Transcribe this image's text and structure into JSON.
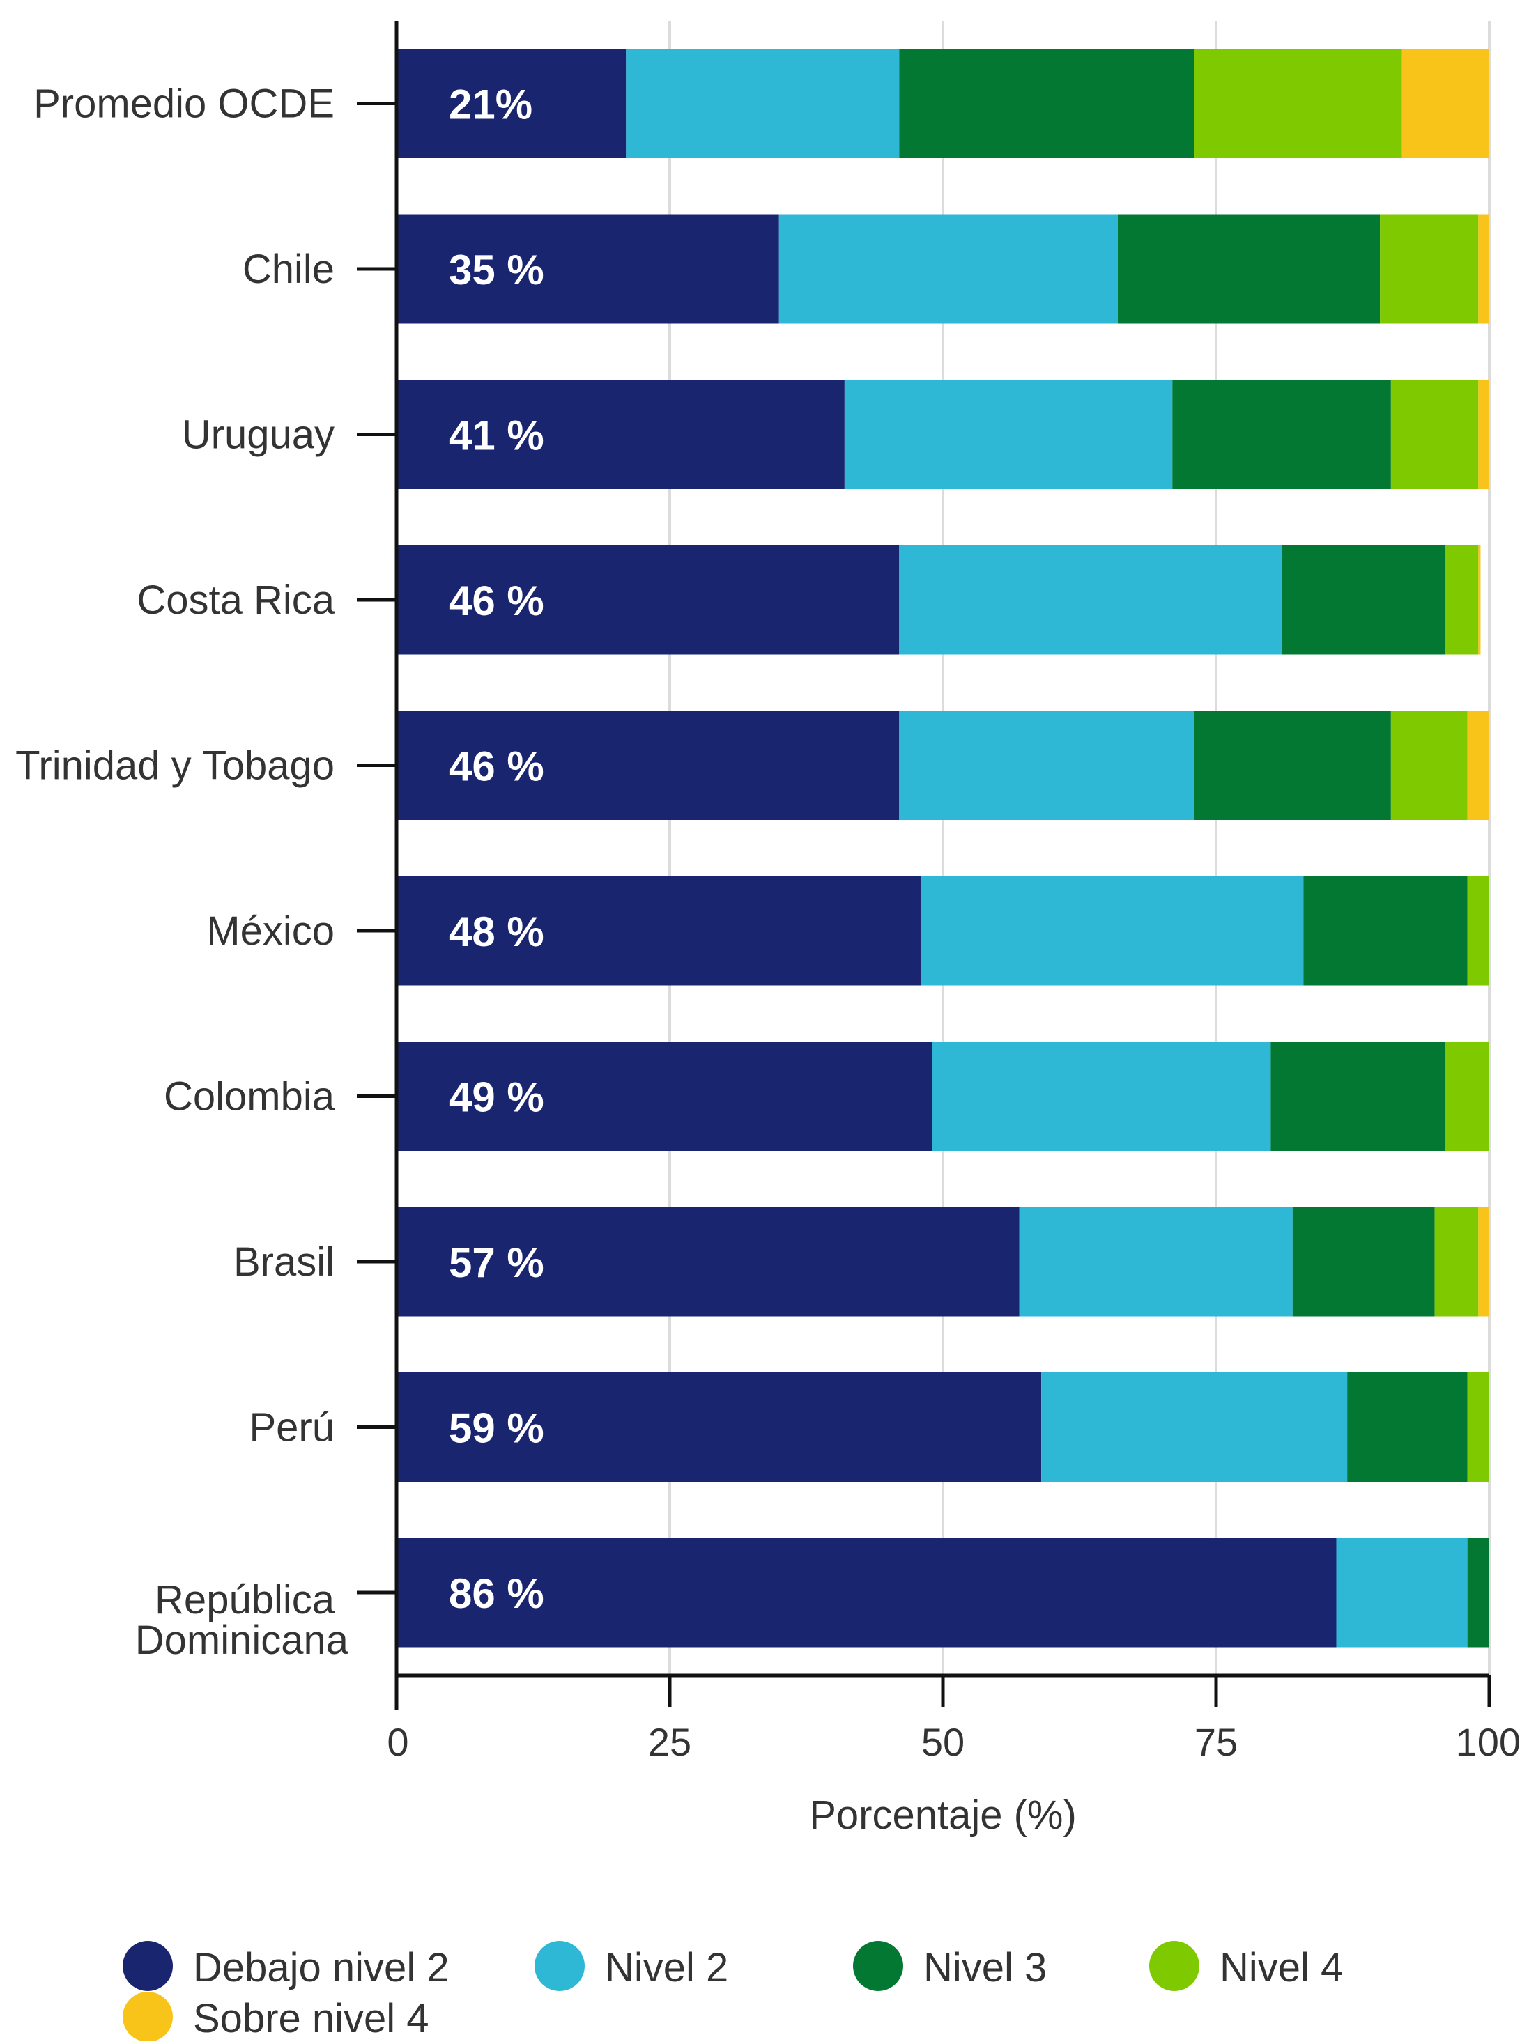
{
  "chart_data": {
    "type": "bar",
    "orientation": "horizontal",
    "stacked": true,
    "categories": [
      "Promedio OCDE",
      "Chile",
      "Uruguay",
      "Costa Rica",
      "Trinidad y Tobago",
      "México",
      "Colombia",
      "Brasil",
      "Perú",
      "República Dominicana"
    ],
    "series": [
      {
        "name": "Debajo nivel 2",
        "color": "#1a2570",
        "values": [
          21,
          35,
          41,
          46,
          46,
          48,
          49,
          57,
          59,
          86
        ]
      },
      {
        "name": "Nivel 2",
        "color": "#2eb8d6",
        "values": [
          25,
          31,
          30,
          35,
          27,
          35,
          31,
          25,
          28,
          12
        ]
      },
      {
        "name": "Nivel 3",
        "color": "#037832",
        "values": [
          27,
          24,
          20,
          15,
          18,
          15,
          16,
          13,
          11,
          2
        ]
      },
      {
        "name": "Nivel 4",
        "color": "#7ec900",
        "values": [
          19,
          9,
          8,
          3,
          7,
          2,
          4,
          4,
          2,
          0.5
        ]
      },
      {
        "name": "Sobre nivel 4",
        "color": "#f8c41a",
        "values": [
          8,
          1,
          1,
          0.2,
          2,
          0.2,
          0.5,
          1,
          0.2,
          0.1
        ]
      }
    ],
    "data_labels": [
      "21%",
      "35 %",
      "41 %",
      "46 %",
      "46 %",
      "48 %",
      "49 %",
      "57 %",
      "59 %",
      "86 %"
    ],
    "category_label_lines": [
      [
        "Promedio OCDE"
      ],
      [
        "Chile"
      ],
      [
        "Uruguay"
      ],
      [
        "Costa Rica"
      ],
      [
        "Trinidad y Tobago"
      ],
      [
        "México"
      ],
      [
        "Colombia"
      ],
      [
        "Brasil"
      ],
      [
        "Perú"
      ],
      [
        "República",
        "Dominicana"
      ]
    ],
    "x_ticks": [
      0,
      25,
      50,
      75,
      100
    ],
    "xlim": [
      0,
      100
    ],
    "xlabel": "Porcentaje (%)",
    "ylabel": "",
    "title": "",
    "grid": "vertical",
    "legend_position": "bottom"
  }
}
